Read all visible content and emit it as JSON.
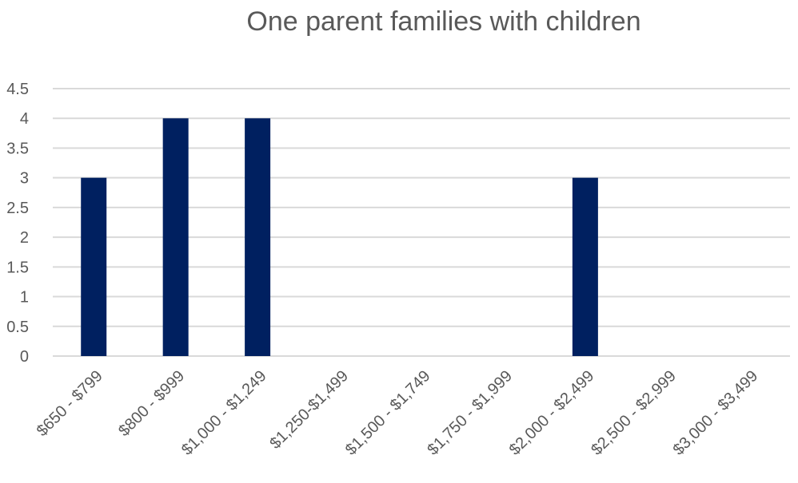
{
  "chart_data": {
    "type": "bar",
    "title": "One parent families with children",
    "xlabel": "",
    "ylabel": "",
    "categories": [
      "$650 - $799",
      "$800 - $999",
      "$1,000 - $1,249",
      "$1,250-$1,499",
      "$1,500 - $1,749",
      "$1,750 - $1,999",
      "$2,000 - $2,499",
      "$2,500 - $2,999",
      "$3,000 - $3,499"
    ],
    "values": [
      3,
      4,
      4,
      0,
      0,
      0,
      3,
      0,
      0
    ],
    "ylim": [
      0,
      4.5
    ],
    "yticks": [
      "0",
      "0.5",
      "1",
      "1.5",
      "2",
      "2.5",
      "3",
      "3.5",
      "4",
      "4.5"
    ],
    "grid": true,
    "legend": "none",
    "colors": {
      "bar": "#002060",
      "grid": "#d9d9d9",
      "text": "#595959"
    }
  }
}
